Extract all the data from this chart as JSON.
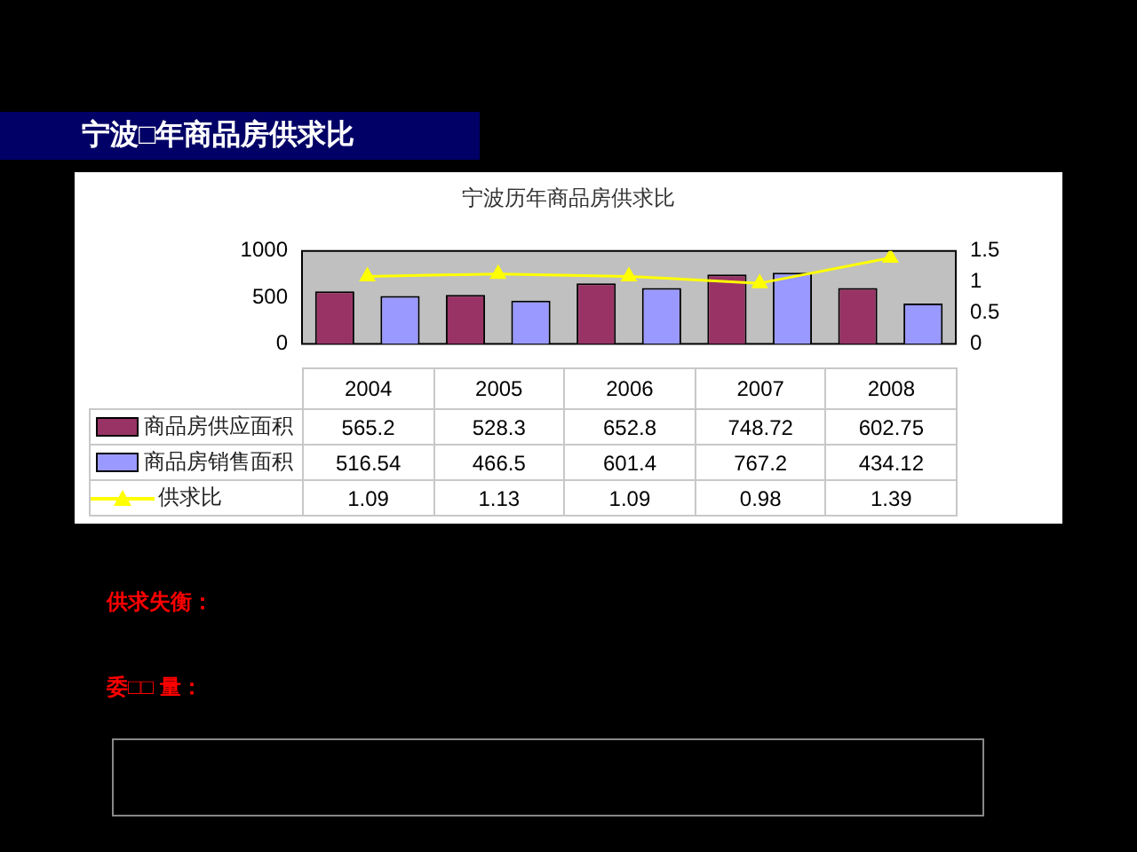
{
  "chart_data": {
    "type": "bar",
    "title": "宁波历年商品房供求比",
    "categories": [
      "2004",
      "2005",
      "2006",
      "2007",
      "2008"
    ],
    "series": [
      {
        "name": "商品房供应面积",
        "color": "#993366",
        "values": [
          565.2,
          528.3,
          652.8,
          748.72,
          602.75
        ]
      },
      {
        "name": "商品房销售面积",
        "color": "#9999ff",
        "values": [
          516.54,
          466.5,
          601.4,
          767.2,
          434.12
        ]
      },
      {
        "name": "供求比",
        "type": "line",
        "axis": "y2",
        "color": "#ffff00",
        "values": [
          1.09,
          1.13,
          1.09,
          0.98,
          1.39
        ]
      }
    ],
    "ylim": [
      0,
      1000
    ],
    "yticks": [
      0,
      500,
      1000
    ],
    "y2lim": [
      0,
      1.5
    ],
    "y2ticks": [
      0,
      0.5,
      1,
      1.5
    ],
    "marker": "triangle",
    "legend": "left",
    "data_labels": true,
    "annotations": [
      "宁波□年商品房供求比",
      "供求失衡：",
      "委□□ 量："
    ]
  }
}
